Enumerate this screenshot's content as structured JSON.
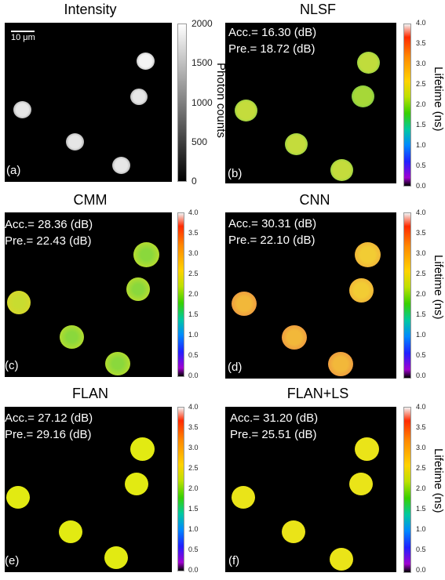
{
  "panels": [
    {
      "id": "a",
      "title": "Intensity",
      "letter": "(a)",
      "accuracy": "",
      "precision": ""
    },
    {
      "id": "b",
      "title": "NLSF",
      "letter": "(b)",
      "accuracy": "Acc.= 16.30 (dB)",
      "precision": "Pre.= 18.72 (dB)"
    },
    {
      "id": "c",
      "title": "CMM",
      "letter": "(c)",
      "accuracy": "Acc.= 28.36 (dB)",
      "precision": "Pre.= 22.43 (dB)"
    },
    {
      "id": "d",
      "title": "CNN",
      "letter": "(d)",
      "accuracy": "Acc.= 30.31 (dB)",
      "precision": "Pre.= 22.10 (dB)"
    },
    {
      "id": "e",
      "title": "FLAN",
      "letter": "(e)",
      "accuracy": "Acc.= 27.12 (dB)",
      "precision": "Pre.= 29.16 (dB)"
    },
    {
      "id": "f",
      "title": "FLAN+LS",
      "letter": "(f)",
      "accuracy": "Acc.= 31.20 (dB)",
      "precision": "Pre.= 25.51 (dB)"
    }
  ],
  "scale_bar": "10 μm",
  "intensity_colorbar": {
    "label": "Photon counts",
    "ticks": [
      "2000",
      "1500",
      "1000",
      "500",
      "0"
    ]
  },
  "lifetime_colorbar": {
    "label": "Lifetime (ns)",
    "ticks": [
      "4.0",
      "3.5",
      "3.0",
      "2.5",
      "2.0",
      "1.5",
      "1.0",
      "0.5",
      "0.0"
    ]
  },
  "colors": {
    "nlsf_cell": "#b8d83a",
    "cmm_cell": "#b0dc32",
    "cnn_cell": "#f0b838",
    "flan_cell": "#e2ea12",
    "flanls_cell": "#eae418"
  }
}
